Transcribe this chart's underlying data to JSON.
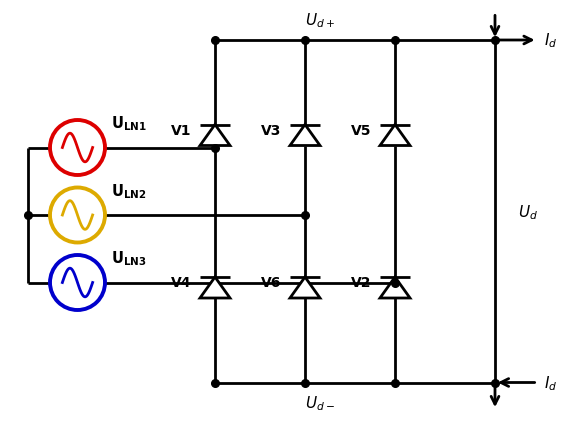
{
  "background_color": "#ffffff",
  "line_color": "#000000",
  "line_width": 2.0,
  "source_colors": [
    "#dd0000",
    "#ddaa00",
    "#0000cc"
  ],
  "diode_top_labels": [
    "V1",
    "V3",
    "V5"
  ],
  "diode_bot_labels": [
    "V4",
    "V6",
    "V2"
  ],
  "figsize": [
    5.73,
    4.31
  ],
  "dpi": 100,
  "xlim": [
    0,
    11.46
  ],
  "ylim": [
    0,
    8.62
  ]
}
